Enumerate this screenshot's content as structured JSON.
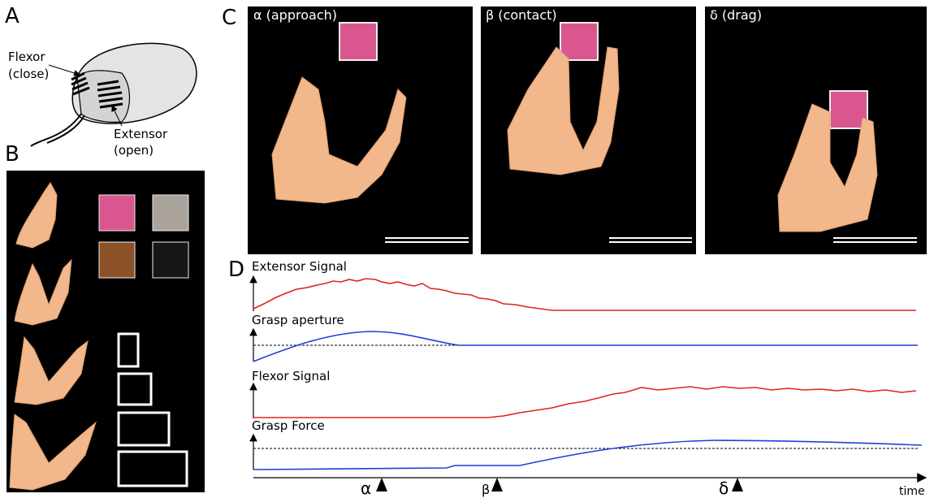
{
  "panels": {
    "a": {
      "label": "A",
      "flexor": [
        "Flexor",
        "(close)"
      ],
      "extensor": [
        "Extensor",
        "(open)"
      ]
    },
    "b": {
      "label": "B"
    },
    "c": {
      "label": "C",
      "frames": [
        "α (approach)",
        "β (contact)",
        "δ (drag)"
      ]
    },
    "d": {
      "label": "D",
      "traces": [
        "Extensor Signal",
        "Grasp aperture",
        "Flexor Signal",
        "Grasp Force"
      ],
      "events": [
        "α",
        "β",
        "δ"
      ],
      "axis_label": "time"
    }
  }
}
